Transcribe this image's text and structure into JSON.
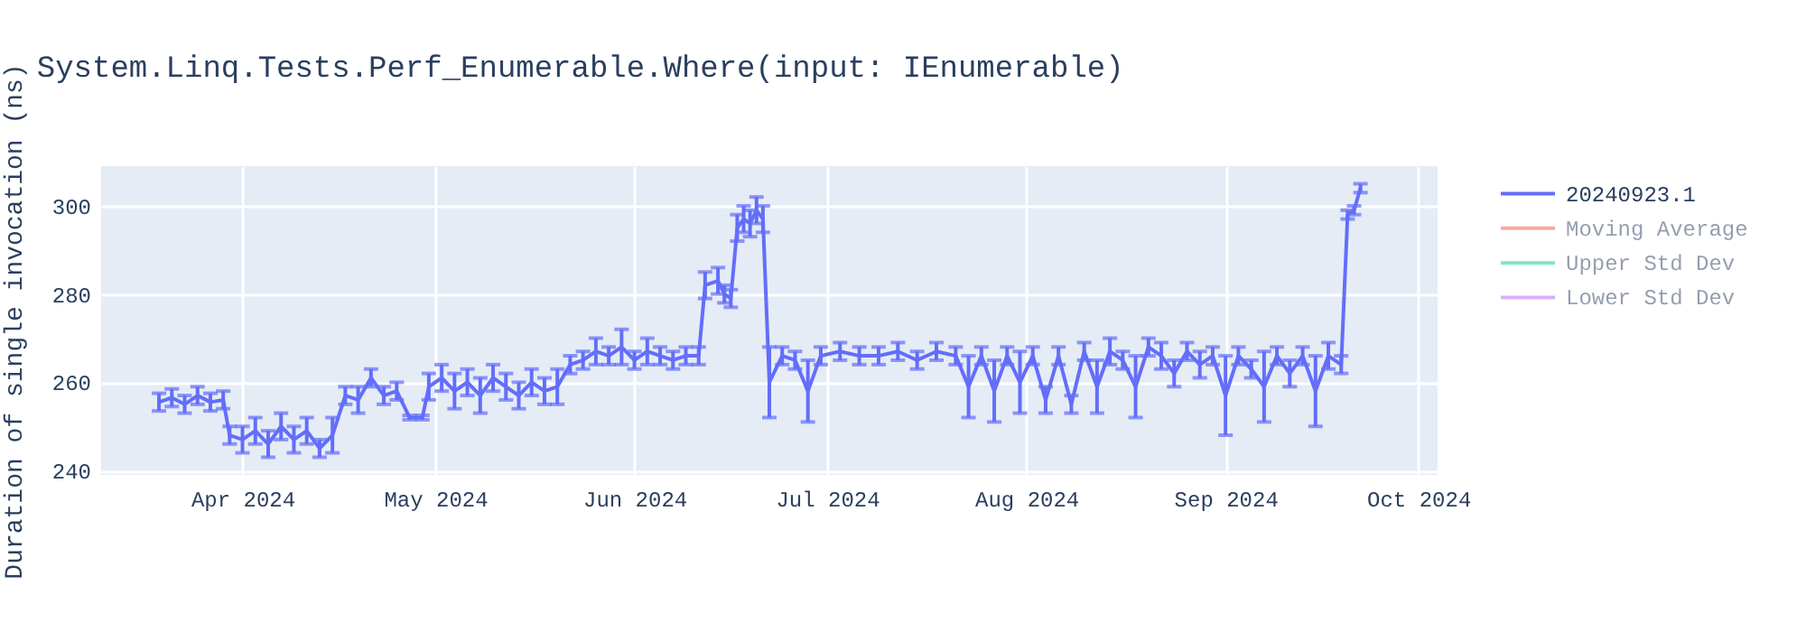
{
  "chart_data": {
    "type": "line",
    "title": "System.Linq.Tests.Perf_Enumerable.Where(input: IEnumerable)",
    "ylabel": "Duration of single invocation (ns)",
    "x": [
      "2024-03-19",
      "2024-03-21",
      "2024-03-23",
      "2024-03-25",
      "2024-03-27",
      "2024-03-29",
      "2024-03-30",
      "2024-04-01",
      "2024-04-03",
      "2024-04-05",
      "2024-04-07",
      "2024-04-09",
      "2024-04-11",
      "2024-04-13",
      "2024-04-15",
      "2024-04-17",
      "2024-04-19",
      "2024-04-21",
      "2024-04-23",
      "2024-04-25",
      "2024-04-27",
      "2024-04-29",
      "2024-04-30",
      "2024-05-02",
      "2024-05-04",
      "2024-05-06",
      "2024-05-08",
      "2024-05-10",
      "2024-05-12",
      "2024-05-14",
      "2024-05-16",
      "2024-05-18",
      "2024-05-20",
      "2024-05-22",
      "2024-05-24",
      "2024-05-26",
      "2024-05-28",
      "2024-05-30",
      "2024-06-01",
      "2024-06-03",
      "2024-06-05",
      "2024-06-07",
      "2024-06-09",
      "2024-06-11",
      "2024-06-12",
      "2024-06-14",
      "2024-06-15",
      "2024-06-16",
      "2024-06-17",
      "2024-06-18",
      "2024-06-19",
      "2024-06-20",
      "2024-06-21",
      "2024-06-22",
      "2024-06-24",
      "2024-06-26",
      "2024-06-28",
      "2024-06-30",
      "2024-07-03",
      "2024-07-06",
      "2024-07-09",
      "2024-07-12",
      "2024-07-15",
      "2024-07-18",
      "2024-07-21",
      "2024-07-23",
      "2024-07-25",
      "2024-07-27",
      "2024-07-29",
      "2024-07-31",
      "2024-08-02",
      "2024-08-04",
      "2024-08-06",
      "2024-08-08",
      "2024-08-10",
      "2024-08-12",
      "2024-08-14",
      "2024-08-16",
      "2024-08-18",
      "2024-08-20",
      "2024-08-22",
      "2024-08-24",
      "2024-08-26",
      "2024-08-28",
      "2024-08-30",
      "2024-09-01",
      "2024-09-03",
      "2024-09-05",
      "2024-09-07",
      "2024-09-09",
      "2024-09-11",
      "2024-09-13",
      "2024-09-15",
      "2024-09-17",
      "2024-09-19",
      "2024-09-20",
      "2024-09-21",
      "2024-09-22"
    ],
    "series": [
      {
        "name": "20240923.1",
        "color": "#636efa",
        "values": [
          255.5,
          256.5,
          255,
          257,
          255.5,
          256,
          248,
          247,
          249,
          246,
          250,
          247,
          249,
          245,
          248,
          257,
          256,
          261,
          257,
          258,
          252,
          252,
          259,
          261,
          258,
          260,
          257,
          261,
          259,
          257,
          260,
          258,
          259,
          264,
          265,
          267,
          266,
          268,
          265,
          267,
          266,
          265,
          266,
          266,
          282,
          283,
          280,
          279,
          295,
          297,
          296,
          299,
          297,
          260,
          266,
          265,
          258,
          266,
          267,
          266,
          266,
          267,
          265,
          267,
          266,
          259,
          266,
          258,
          266,
          260,
          266,
          256,
          266,
          255,
          267,
          259,
          267,
          265,
          259,
          268,
          266,
          262,
          267,
          264,
          266,
          257,
          266,
          263,
          259,
          266,
          262,
          266,
          258,
          266,
          264,
          298,
          299,
          304
        ],
        "errors": [
          2,
          2,
          2,
          2,
          2,
          2,
          2,
          3,
          3,
          3,
          3,
          3,
          3,
          2,
          4,
          2,
          3,
          2,
          2,
          2,
          0.5,
          0.5,
          3,
          3,
          4,
          3,
          4,
          3,
          3,
          3,
          3,
          3,
          4,
          2,
          2,
          3,
          2,
          4,
          2,
          3,
          2,
          2,
          2,
          2,
          3,
          3,
          2,
          2,
          3,
          3,
          3,
          3,
          3,
          8,
          2,
          2,
          7,
          2,
          2,
          2,
          2,
          2,
          2,
          2,
          2,
          7,
          2,
          7,
          2,
          7,
          2,
          3,
          2,
          2,
          2,
          6,
          3,
          2,
          7,
          2,
          3,
          3,
          2,
          3,
          2,
          9,
          2,
          2,
          8,
          2,
          3,
          2,
          8,
          3,
          2,
          1,
          1,
          1
        ]
      },
      {
        "name": "Moving Average",
        "color": "#ef553b",
        "values": [
          null,
          null,
          null,
          null,
          null,
          null,
          null,
          null,
          null,
          null,
          null,
          null,
          null,
          null,
          null,
          null,
          null,
          null,
          null,
          null,
          null,
          null,
          null,
          null,
          null,
          null,
          null,
          null,
          null,
          null,
          null,
          null,
          null,
          null,
          null,
          null,
          null,
          null,
          null,
          null,
          null,
          null,
          null,
          null,
          null,
          null,
          null,
          null,
          null,
          null,
          null,
          null,
          null,
          null,
          null,
          null,
          null,
          null,
          null,
          null,
          null,
          null,
          null,
          null,
          null,
          null,
          null,
          null,
          null,
          null,
          null,
          null,
          null,
          null,
          null,
          null,
          null,
          null,
          null,
          null,
          null,
          null,
          null,
          null,
          null,
          null,
          null,
          null,
          null,
          null,
          null,
          null,
          null,
          null,
          null,
          null,
          null,
          null
        ]
      },
      {
        "name": "Upper Std Dev",
        "color": "#00cc96",
        "values": [
          null,
          null,
          null,
          null,
          null,
          null,
          null,
          null,
          null,
          null,
          null,
          null,
          null,
          null,
          null,
          null,
          null,
          null,
          null,
          null,
          null,
          null,
          null,
          null,
          null,
          null,
          null,
          null,
          null,
          null,
          null,
          null,
          null,
          null,
          null,
          null,
          null,
          null,
          null,
          null,
          null,
          null,
          null,
          null,
          null,
          null,
          null,
          null,
          null,
          null,
          null,
          null,
          null,
          null,
          null,
          null,
          null,
          null,
          null,
          null,
          null,
          null,
          null,
          null,
          null,
          null,
          null,
          null,
          null,
          null,
          null,
          null,
          null,
          null,
          null,
          null,
          null,
          null,
          null,
          null,
          null,
          null,
          null,
          null,
          null,
          null,
          null,
          null,
          null,
          null,
          null,
          null,
          null,
          null,
          null,
          null,
          null,
          null
        ]
      },
      {
        "name": "Lower Std Dev",
        "color": "#ab63fa",
        "values": [
          null,
          null,
          null,
          null,
          null,
          null,
          null,
          null,
          null,
          null,
          null,
          null,
          null,
          null,
          null,
          null,
          null,
          null,
          null,
          null,
          null,
          null,
          null,
          null,
          null,
          null,
          null,
          null,
          null,
          null,
          null,
          null,
          null,
          null,
          null,
          null,
          null,
          null,
          null,
          null,
          null,
          null,
          null,
          null,
          null,
          null,
          null,
          null,
          null,
          null,
          null,
          null,
          null,
          null,
          null,
          null,
          null,
          null,
          null,
          null,
          null,
          null,
          null,
          null,
          null,
          null,
          null,
          null,
          null,
          null,
          null,
          null,
          null,
          null,
          null,
          null,
          null,
          null,
          null,
          null,
          null,
          null,
          null,
          null,
          null,
          null,
          null,
          null,
          null,
          null,
          null,
          null,
          null,
          null,
          null,
          null,
          null,
          null
        ]
      }
    ],
    "xlim": [
      "2024-03-10",
      "2024-10-04"
    ],
    "xticks": [
      {
        "value": "2024-04-01",
        "label": "Apr 2024"
      },
      {
        "value": "2024-05-01",
        "label": "May 2024"
      },
      {
        "value": "2024-06-01",
        "label": "Jun 2024"
      },
      {
        "value": "2024-07-01",
        "label": "Jul 2024"
      },
      {
        "value": "2024-08-01",
        "label": "Aug 2024"
      },
      {
        "value": "2024-09-01",
        "label": "Sep 2024"
      },
      {
        "value": "2024-10-01",
        "label": "Oct 2024"
      }
    ],
    "ylim": [
      239,
      309
    ],
    "yticks": [
      240,
      260,
      280,
      300
    ],
    "grid": true,
    "legend": "right"
  }
}
